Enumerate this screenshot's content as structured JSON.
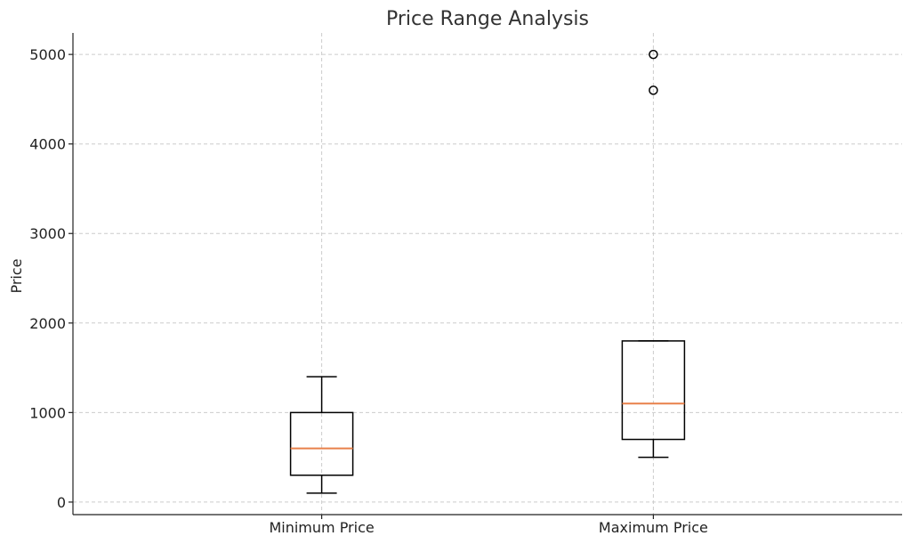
{
  "chart_data": {
    "type": "box",
    "title": "Price Range Analysis",
    "xlabel": "",
    "ylabel": "Price",
    "ylim": [
      -140,
      5240
    ],
    "yticks": [
      0,
      1000,
      2000,
      3000,
      4000,
      5000
    ],
    "grid": true,
    "categories": [
      "Minimum Price",
      "Maximum Price"
    ],
    "boxes": [
      {
        "category": "Minimum Price",
        "whisker_low": 100,
        "q1": 300,
        "median": 600,
        "q3": 1000,
        "whisker_high": 1400,
        "outliers": []
      },
      {
        "category": "Maximum Price",
        "whisker_low": 500,
        "q1": 700,
        "median": 1100,
        "q3": 1800,
        "whisker_high": 1800,
        "outliers": [
          4600,
          5000
        ]
      }
    ],
    "colors": {
      "box": "#000000",
      "median": "#e8804a",
      "grid": "#cccccc"
    }
  }
}
